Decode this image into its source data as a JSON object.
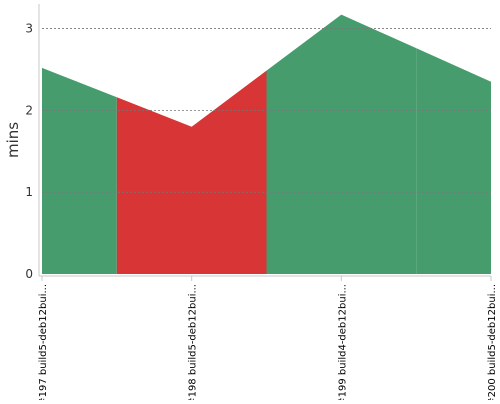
{
  "chart_data": {
    "type": "area",
    "ylabel": "mins",
    "ylim": [
      0,
      3.3
    ],
    "yticks": [
      0,
      1,
      2,
      3
    ],
    "grid": true,
    "categories": [
      "#197 build5-deb12bui...",
      "#198 build5-deb12bui...",
      "#199 build4-deb12bui...",
      "#200 build5-deb12bui..."
    ],
    "values": [
      2.52,
      1.8,
      3.17,
      2.35
    ],
    "segment_status": [
      "success",
      "failure",
      "success"
    ],
    "colors": {
      "success": "#479c6d",
      "failure": "#d73536",
      "grid": "#777777",
      "axis": "#c8c8c8",
      "text": "#333333"
    }
  }
}
